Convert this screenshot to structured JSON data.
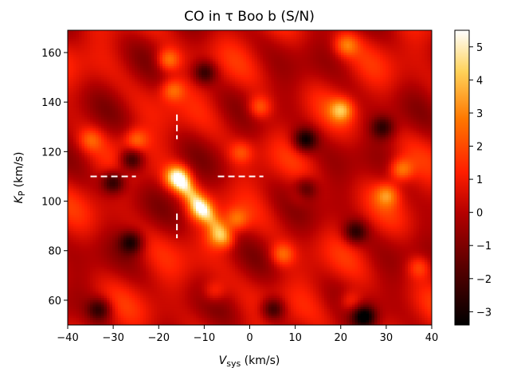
{
  "chart_data": {
    "type": "heatmap",
    "title": "CO in τ Boo b (S/N)",
    "xlabel": {
      "main": "V",
      "sub": "sys",
      "unit": " (km/s)"
    },
    "ylabel": {
      "main": "K",
      "sub": "P",
      "unit": " (km/s)"
    },
    "xlim": [
      -40,
      40
    ],
    "ylim": [
      50,
      169
    ],
    "xticks": [
      -40,
      -30,
      -20,
      -10,
      0,
      10,
      20,
      30,
      40
    ],
    "yticks": [
      60,
      80,
      100,
      120,
      140,
      160
    ],
    "colorbar": {
      "range": [
        -3.4,
        5.5
      ],
      "ticks": [
        -3,
        -2,
        -1,
        0,
        1,
        2,
        3,
        4,
        5
      ],
      "colormap": "gist_heat",
      "colors": [
        "#000000",
        "#5a0000",
        "#b40000",
        "#ff1e00",
        "#ff7800",
        "#ffd25a",
        "#ffffff"
      ]
    },
    "peak": {
      "vsys": -16,
      "kp": 110,
      "snr": 5.5
    },
    "crosshair_marker": {
      "vsys": -16,
      "kp": 110,
      "color": "#ffffff",
      "style": "dashed"
    },
    "features": [
      {
        "vsys": -16,
        "kp": 110,
        "snr": 5.4
      },
      {
        "vsys": -11,
        "kp": 97,
        "snr": 2.8
      },
      {
        "vsys": -7,
        "kp": 86,
        "snr": 2.6
      },
      {
        "vsys": -18,
        "kp": 157,
        "snr": 3.0
      },
      {
        "vsys": -17,
        "kp": 145,
        "snr": 2.5
      },
      {
        "vsys": -25,
        "kp": 125,
        "snr": 2.4
      },
      {
        "vsys": 20,
        "kp": 137,
        "snr": 3.2
      },
      {
        "vsys": 33,
        "kp": 113,
        "snr": 3.0
      },
      {
        "vsys": 30,
        "kp": 103,
        "snr": 2.6
      },
      {
        "vsys": 21,
        "kp": 163,
        "snr": 2.6
      },
      {
        "vsys": 2,
        "kp": 138,
        "snr": 2.6
      },
      {
        "vsys": 7,
        "kp": 79,
        "snr": 2.6
      },
      {
        "vsys": -8,
        "kp": 64,
        "snr": 2.0
      },
      {
        "vsys": 22,
        "kp": 60,
        "snr": 2.2
      },
      {
        "vsys": -35,
        "kp": 125,
        "snr": 2.0
      },
      {
        "vsys": -2,
        "kp": 120,
        "snr": 2.0
      },
      {
        "vsys": -3,
        "kp": 93,
        "snr": 2.4
      },
      {
        "vsys": 11,
        "kp": 103,
        "snr": 2.0
      },
      {
        "vsys": 37,
        "kp": 74,
        "snr": 2.2
      },
      {
        "vsys": -30,
        "kp": 108,
        "snr": -2.9
      },
      {
        "vsys": -26,
        "kp": 117,
        "snr": -2.7
      },
      {
        "vsys": 12,
        "kp": 125,
        "snr": -3.0
      },
      {
        "vsys": 12,
        "kp": 105,
        "snr": -2.6
      },
      {
        "vsys": -26,
        "kp": 84,
        "snr": -2.6
      },
      {
        "vsys": 25,
        "kp": 54,
        "snr": -3.2
      },
      {
        "vsys": -10,
        "kp": 152,
        "snr": -2.4
      },
      {
        "vsys": 23,
        "kp": 88,
        "snr": -2.4
      },
      {
        "vsys": -33,
        "kp": 57,
        "snr": -2.2
      },
      {
        "vsys": 5,
        "kp": 57,
        "snr": -2.6
      },
      {
        "vsys": 29,
        "kp": 130,
        "snr": -2.2
      }
    ]
  }
}
